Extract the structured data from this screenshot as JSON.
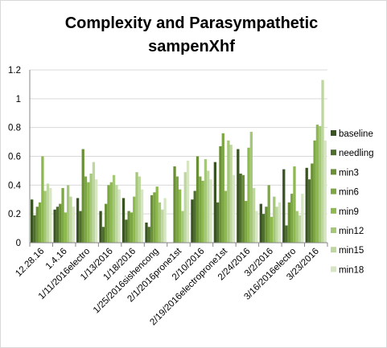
{
  "chart_data": {
    "type": "bar",
    "title": "Complexity and Parasympathetic sampenXhf",
    "title_lines": [
      "Complexity and Parasympathetic",
      "sampenXhf"
    ],
    "xlabel": "",
    "ylabel": "",
    "ylim": [
      0,
      1.2
    ],
    "ytick_step": 0.2,
    "ytick_labels": [
      "0",
      "0.2",
      "0.4",
      "0.6",
      "0.8",
      "1",
      "1.2"
    ],
    "grid": "horizontal",
    "legend_position": "right",
    "categories": [
      "12.28.16",
      "1.4.16",
      "1/11/2016electro",
      "1/13/2016",
      "1/18/2016",
      "1/25/2016sishencong",
      "2/1/2016prone1st",
      "2/10/2016",
      "2/19/2016electroprone1st",
      "2/24/2016",
      "3/2/2016",
      "3/16/2016electro",
      "3/23/2016"
    ],
    "series": [
      {
        "name": "baseline",
        "color": "#3a5322",
        "values": [
          0.3,
          0.23,
          0.31,
          0.22,
          0.31,
          0.14,
          null,
          0.3,
          0.56,
          0.65,
          0.27,
          0.51,
          0.52
        ]
      },
      {
        "name": "needling",
        "color": "#4e6e2d",
        "values": [
          0.19,
          0.25,
          0.22,
          0.11,
          0.16,
          0.11,
          null,
          0.36,
          0.28,
          0.48,
          0.2,
          0.12,
          0.44
        ]
      },
      {
        "name": "min3",
        "color": "#6a9036",
        "values": [
          0.25,
          0.27,
          0.65,
          0.27,
          0.22,
          0.33,
          0.53,
          0.6,
          0.67,
          0.47,
          0.25,
          0.28,
          0.55
        ]
      },
      {
        "name": "min6",
        "color": "#7da743",
        "values": [
          0.28,
          0.38,
          0.46,
          0.4,
          0.21,
          0.35,
          0.46,
          0.46,
          0.76,
          0.29,
          0.4,
          0.34,
          0.71
        ]
      },
      {
        "name": "min9",
        "color": "#8db94f",
        "values": [
          0.6,
          0.21,
          0.42,
          0.42,
          0.32,
          0.39,
          0.37,
          0.43,
          0.36,
          0.66,
          0.18,
          0.53,
          0.82
        ]
      },
      {
        "name": "min12",
        "color": "#a5c878",
        "values": [
          0.36,
          0.4,
          0.48,
          0.47,
          0.49,
          0.28,
          0.22,
          0.58,
          0.71,
          0.77,
          0.32,
          0.22,
          0.81
        ]
      },
      {
        "name": "min15",
        "color": "#bed79e",
        "values": [
          0.41,
          0.32,
          0.56,
          0.4,
          0.46,
          0.23,
          0.49,
          0.5,
          0.68,
          0.38,
          0.25,
          0.19,
          1.13
        ]
      },
      {
        "name": "min18",
        "color": "#d6e6c2",
        "values": [
          0.38,
          0.25,
          0.44,
          0.37,
          0.37,
          0.31,
          0.57,
          0.44,
          0.47,
          0.22,
          0.28,
          0.34,
          0.71
        ]
      }
    ]
  }
}
